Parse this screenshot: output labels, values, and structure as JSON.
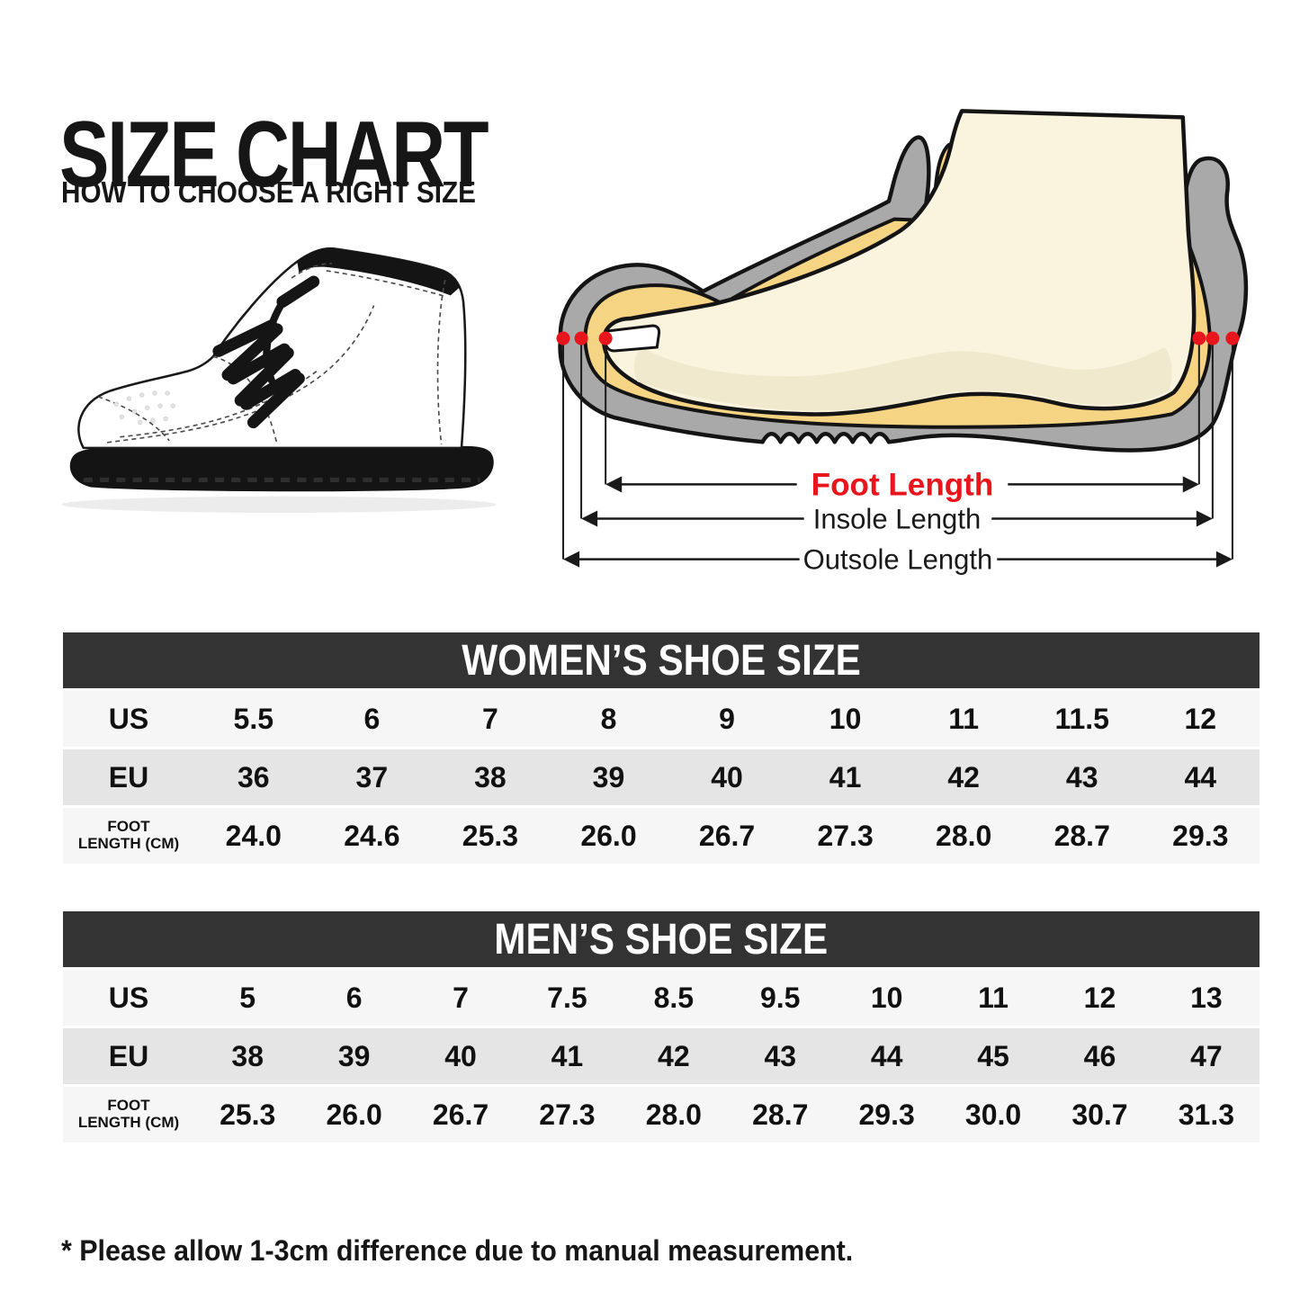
{
  "page": {
    "title": "SIZE CHART",
    "subtitle": "HOW TO CHOOSE A RIGHT SIZE",
    "footnote": "* Please allow 1-3cm difference due to manual measurement."
  },
  "diagram": {
    "foot_length_label": "Foot Length",
    "insole_length_label": "Insole Length",
    "outsole_length_label": "Outsole Length"
  },
  "tables": [
    {
      "title": "WOMEN’S SHOE SIZE",
      "rows": [
        {
          "key": "us",
          "label": "US",
          "small": false,
          "values": [
            "5.5",
            "6",
            "7",
            "8",
            "9",
            "10",
            "11",
            "11.5",
            "12"
          ]
        },
        {
          "key": "eu",
          "label": "EU",
          "small": false,
          "values": [
            "36",
            "37",
            "38",
            "39",
            "40",
            "41",
            "42",
            "43",
            "44"
          ]
        },
        {
          "key": "foot-length-cm",
          "label": "FOOT\nLENGTH (CM)",
          "small": true,
          "values": [
            "24.0",
            "24.6",
            "25.3",
            "26.0",
            "26.7",
            "27.3",
            "28.0",
            "28.7",
            "29.3"
          ]
        }
      ]
    },
    {
      "title": "MEN’S SHOE SIZE",
      "rows": [
        {
          "key": "us",
          "label": "US",
          "small": false,
          "values": [
            "5",
            "6",
            "7",
            "7.5",
            "8.5",
            "9.5",
            "10",
            "11",
            "12",
            "13"
          ]
        },
        {
          "key": "eu",
          "label": "EU",
          "small": false,
          "values": [
            "38",
            "39",
            "40",
            "41",
            "42",
            "43",
            "44",
            "45",
            "46",
            "47"
          ]
        },
        {
          "key": "foot-length-cm",
          "label": "FOOT\nLENGTH (CM)",
          "small": true,
          "values": [
            "25.3",
            "26.0",
            "26.7",
            "27.3",
            "28.0",
            "28.7",
            "29.3",
            "30.0",
            "30.7",
            "31.3"
          ]
        }
      ]
    }
  ],
  "theme": {
    "accent_red": "#e8151d",
    "ink": "#141414",
    "shoe_gray": "#a9a9a9",
    "insole_yellow": "#f5d484",
    "foot_cream": "#faf4de",
    "foot_shade": "#f0e9cd",
    "header_bg": "#333333",
    "row_light": "#f6f6f6",
    "row_dark": "#e5e5e5"
  }
}
